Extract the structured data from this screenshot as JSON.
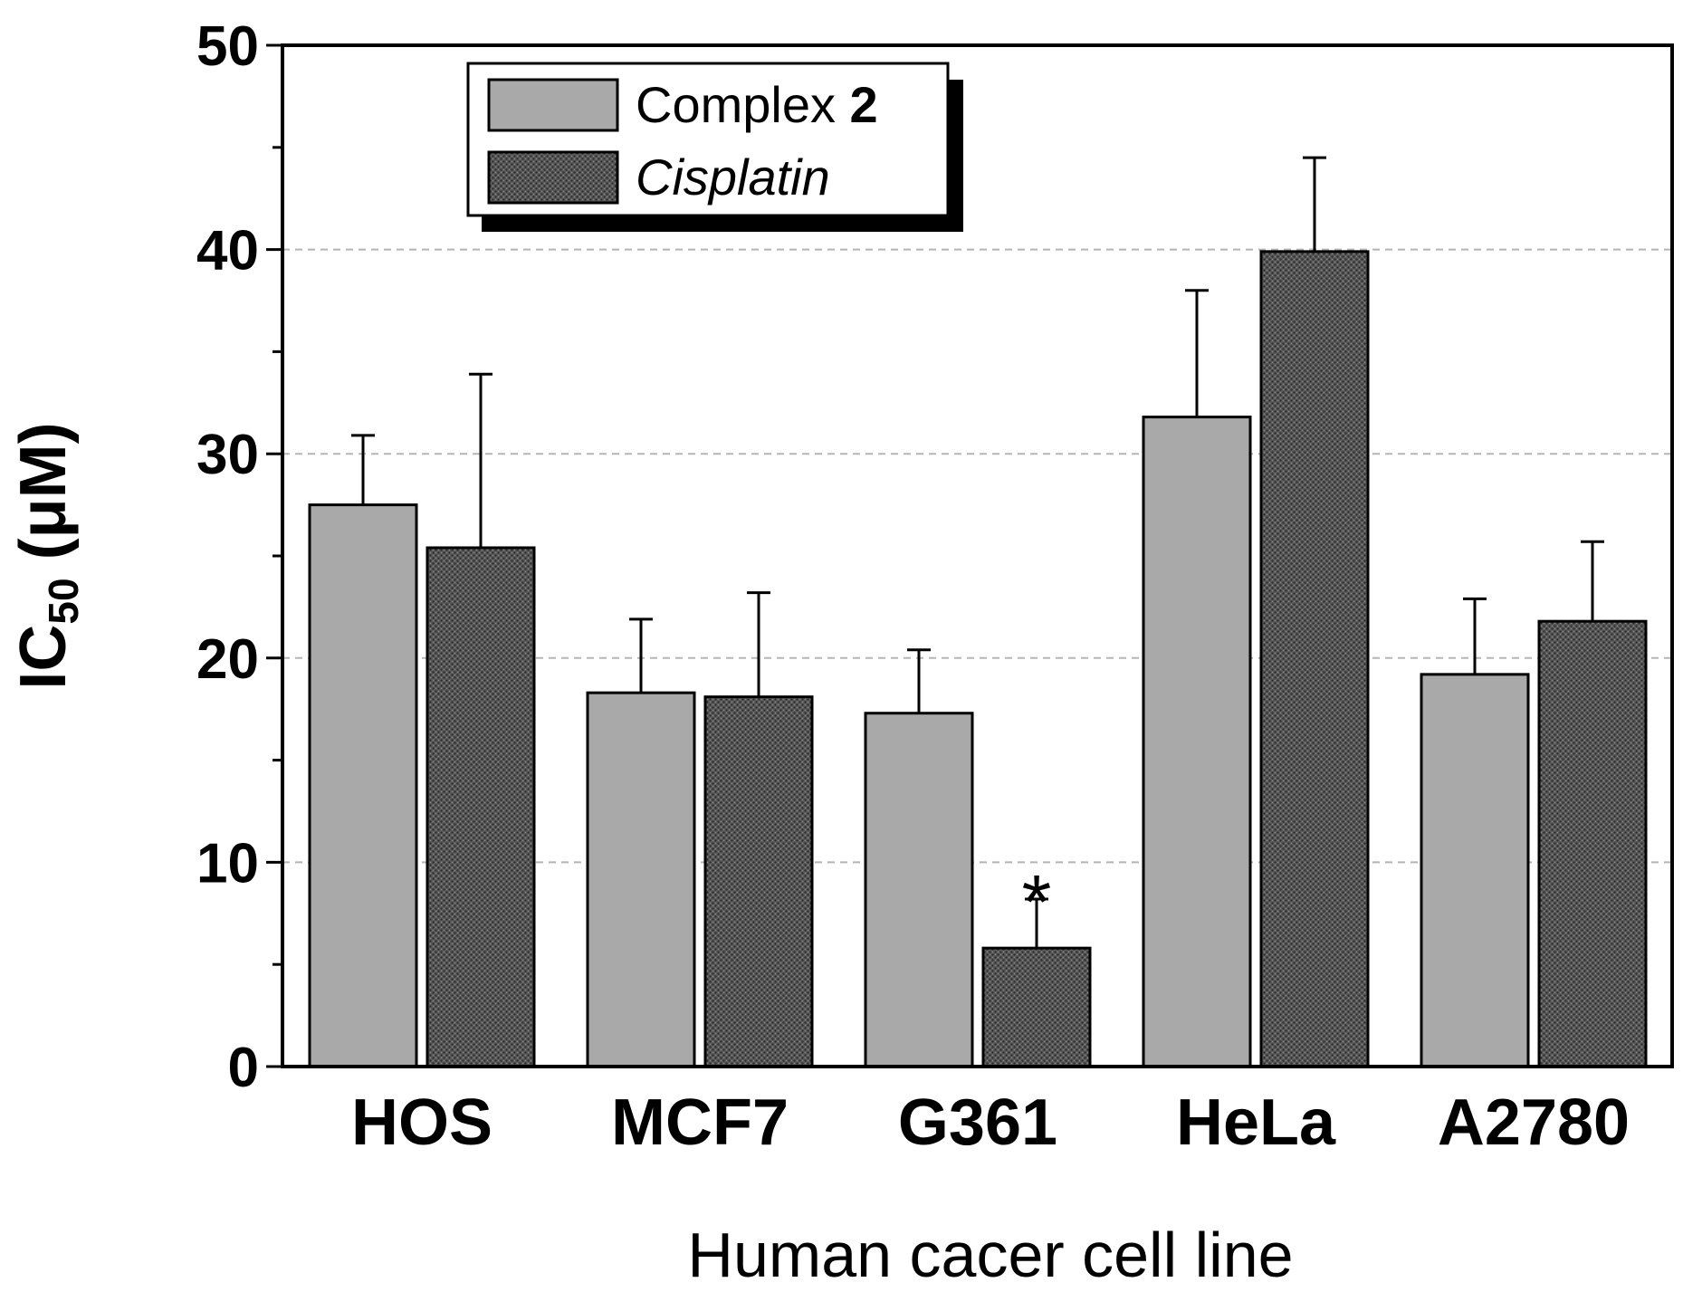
{
  "chart_data": {
    "type": "bar",
    "title": "",
    "xlabel": "Human cacer cell line",
    "ylabel": {
      "main": "IC",
      "sub": "50",
      "unit": " (μM)"
    },
    "ylim": [
      0,
      50
    ],
    "yticks": [
      0,
      10,
      20,
      30,
      40,
      50
    ],
    "grid_values": [
      10,
      20,
      30,
      40
    ],
    "categories": [
      "HOS",
      "MCF7",
      "G361",
      "HeLa",
      "A2780"
    ],
    "series": [
      {
        "name": "Complex 2",
        "legend_prefix": "Complex ",
        "legend_bold": "2",
        "color": "#a9a9a9",
        "values": [
          27.5,
          18.3,
          17.3,
          31.8,
          19.2
        ],
        "error_top": [
          30.9,
          21.9,
          20.4,
          38.0,
          22.9
        ]
      },
      {
        "name": "Cisplatin",
        "legend_label": "Cisplatin",
        "color": "#4d4d4d",
        "pattern": true,
        "values": [
          25.4,
          18.1,
          5.8,
          39.9,
          21.8
        ],
        "error_top": [
          33.9,
          23.2,
          8.2,
          44.5,
          25.7
        ]
      }
    ],
    "annotations": [
      {
        "text": "*",
        "category": "G361",
        "series": "Cisplatin"
      }
    ],
    "legend_position": "top-left"
  }
}
